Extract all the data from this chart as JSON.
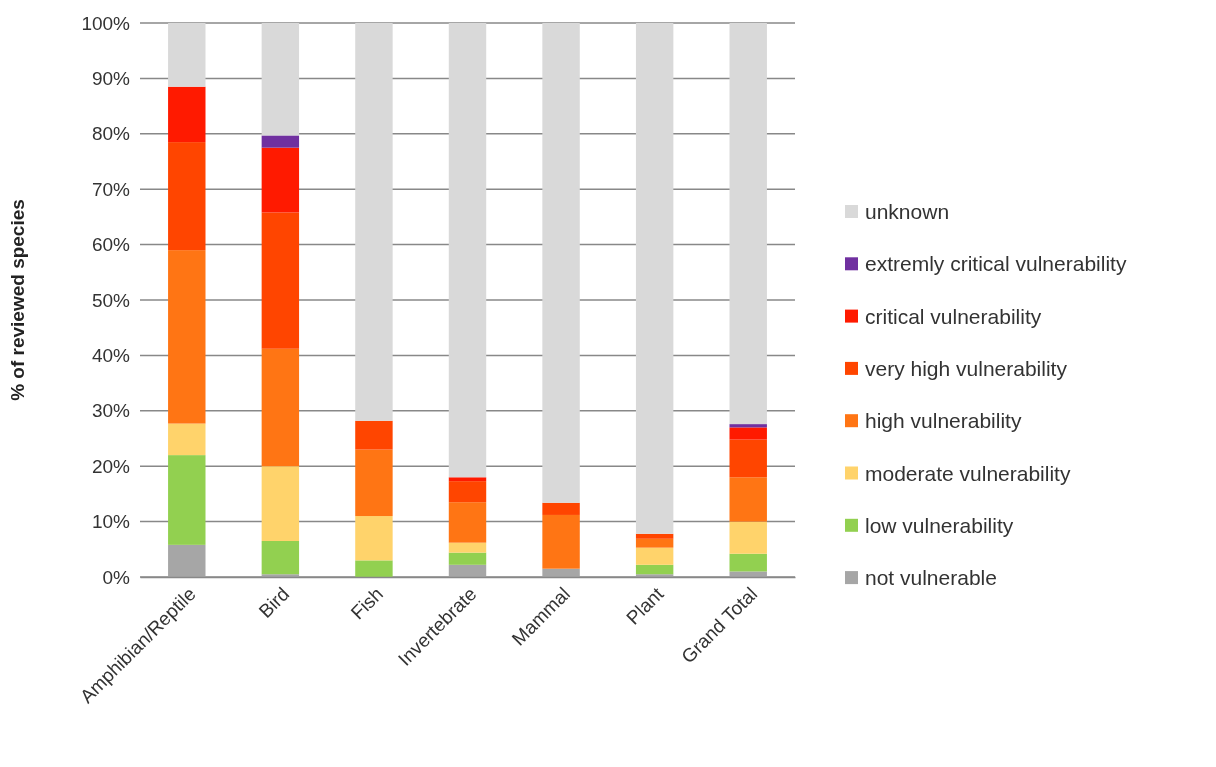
{
  "chart_data": {
    "type": "bar",
    "stacked": true,
    "ylabel": "% of reviewed species",
    "categories": [
      "Amphibian/Reptile",
      "Bird",
      "Fish",
      "Invertebrate",
      "Mammal",
      "Plant",
      "Grand Total"
    ],
    "ylim": [
      0,
      100
    ],
    "yticks": [
      {
        "value": 0,
        "label": "0%"
      },
      {
        "value": 10,
        "label": "10%"
      },
      {
        "value": 20,
        "label": "20%"
      },
      {
        "value": 30,
        "label": "30%"
      },
      {
        "value": 40,
        "label": "40%"
      },
      {
        "value": 50,
        "label": "50%"
      },
      {
        "value": 60,
        "label": "60%"
      },
      {
        "value": 70,
        "label": "70%"
      },
      {
        "value": 80,
        "label": "80%"
      },
      {
        "value": 90,
        "label": "90%"
      },
      {
        "value": 100,
        "label": "100%"
      }
    ],
    "grid": "y",
    "legend": "right",
    "series": [
      {
        "name": "not vulnerable",
        "color": "#a6a6a6",
        "values": [
          5.8,
          0.5,
          0,
          2.2,
          1.5,
          0.5,
          1
        ]
      },
      {
        "name": "low vulnerability",
        "color": "#92d050",
        "values": [
          16.2,
          6,
          3,
          2.2,
          0,
          1.7,
          3.2
        ]
      },
      {
        "name": "moderate vulnerability",
        "color": "#ffd36b",
        "values": [
          5.7,
          13.5,
          8,
          1.8,
          0,
          3.1,
          5.8
        ]
      },
      {
        "name": "high vulnerability",
        "color": "#ff7514",
        "values": [
          31.3,
          21.2,
          12,
          7.3,
          9.7,
          1.6,
          8
        ]
      },
      {
        "name": "very high vulnerability",
        "color": "#ff4500",
        "values": [
          19.5,
          24.6,
          5.2,
          3.8,
          2.2,
          0.9,
          6.8
        ]
      },
      {
        "name": "critical vulnerability",
        "color": "#ff1a00",
        "values": [
          10,
          11.7,
          0,
          0.7,
          0,
          0,
          2.2
        ]
      },
      {
        "name": "extremly critical vulnerability",
        "color": "#7030a0",
        "values": [
          0,
          2.2,
          0,
          0,
          0,
          0,
          0.6
        ]
      },
      {
        "name": "unknown",
        "color": "#d9d9d9",
        "values": [
          11.5,
          20.3,
          71.8,
          82,
          86.6,
          92.2,
          72.4
        ]
      }
    ]
  }
}
